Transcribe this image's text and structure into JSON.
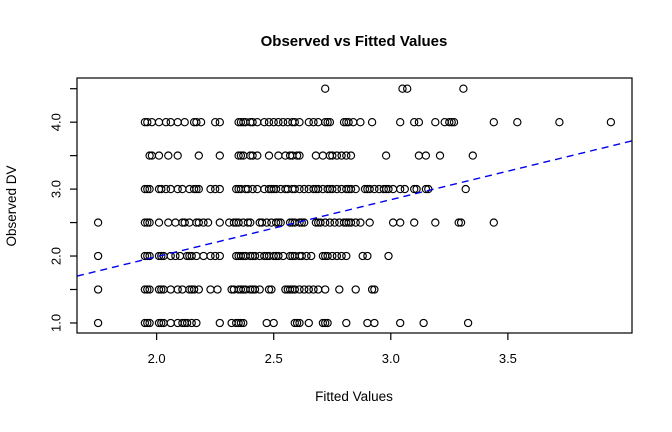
{
  "chart_data": {
    "type": "scatter",
    "title": "Observed vs Fitted Values",
    "xlabel": "Fitted Values",
    "ylabel": "Observed DV",
    "xlim": [
      1.66,
      4.03
    ],
    "ylim": [
      0.85,
      4.66
    ],
    "x_ticks": [
      2.0,
      2.5,
      3.0,
      3.5
    ],
    "x_tick_labels": [
      "2.0",
      "2.5",
      "3.0",
      "3.5"
    ],
    "y_ticks": [
      1.0,
      1.5,
      2.0,
      2.5,
      3.0,
      3.5,
      4.0,
      4.5
    ],
    "y_tick_labels": [
      "1.0",
      "",
      "2.0",
      "",
      "3.0",
      "",
      "4.0",
      ""
    ],
    "grid": false,
    "legend": "none",
    "point_style": {
      "shape": "open-circle",
      "color": "#000000"
    },
    "trend_line": {
      "style": "dashed",
      "color": "#0000EE",
      "x1": 1.66,
      "y1": 1.7,
      "x2": 4.03,
      "y2": 3.72,
      "equation_approx": "y = 0.27 + 0.86x"
    },
    "rows": [
      {
        "observed": 4.5,
        "fitted": [
          2.72,
          3.05,
          3.07,
          3.31
        ]
      },
      {
        "observed": 4.0,
        "fitted": [
          1.95,
          1.96,
          1.98,
          2.01,
          2.04,
          2.06,
          2.09,
          2.12,
          2.16,
          2.17,
          2.19,
          2.25,
          2.27,
          2.35,
          2.36,
          2.37,
          2.38,
          2.4,
          2.41,
          2.43,
          2.46,
          2.48,
          2.5,
          2.52,
          2.54,
          2.56,
          2.58,
          2.59,
          2.61,
          2.65,
          2.67,
          2.69,
          2.72,
          2.73,
          2.74,
          2.8,
          2.81,
          2.82,
          2.84,
          2.87,
          2.92,
          3.04,
          3.1,
          3.12,
          3.19,
          3.23,
          3.25,
          3.26,
          3.27,
          3.44,
          3.54,
          3.72,
          3.94
        ]
      },
      {
        "observed": 3.5,
        "fitted": [
          1.97,
          1.98,
          2.01,
          2.05,
          2.09,
          2.18,
          2.27,
          2.35,
          2.36,
          2.37,
          2.4,
          2.41,
          2.43,
          2.48,
          2.52,
          2.55,
          2.57,
          2.58,
          2.6,
          2.61,
          2.68,
          2.71,
          2.74,
          2.75,
          2.77,
          2.79,
          2.81,
          2.83,
          2.98,
          3.12,
          3.15,
          3.21,
          3.35
        ]
      },
      {
        "observed": 3.0,
        "fitted": [
          1.95,
          1.96,
          1.97,
          2.01,
          2.02,
          2.04,
          2.06,
          2.09,
          2.11,
          2.14,
          2.16,
          2.17,
          2.18,
          2.23,
          2.25,
          2.27,
          2.34,
          2.35,
          2.36,
          2.38,
          2.39,
          2.41,
          2.43,
          2.46,
          2.48,
          2.49,
          2.5,
          2.51,
          2.53,
          2.55,
          2.56,
          2.58,
          2.59,
          2.61,
          2.63,
          2.65,
          2.67,
          2.68,
          2.69,
          2.71,
          2.73,
          2.74,
          2.75,
          2.77,
          2.79,
          2.81,
          2.82,
          2.83,
          2.85,
          2.89,
          2.9,
          2.91,
          2.93,
          2.95,
          2.97,
          2.98,
          2.99,
          3.01,
          3.04,
          3.06,
          3.1,
          3.11,
          3.15,
          3.16,
          3.32
        ]
      },
      {
        "observed": 2.5,
        "fitted": [
          1.75,
          1.95,
          1.96,
          1.97,
          2.01,
          2.05,
          2.08,
          2.11,
          2.12,
          2.14,
          2.17,
          2.18,
          2.2,
          2.22,
          2.27,
          2.31,
          2.33,
          2.34,
          2.35,
          2.37,
          2.39,
          2.4,
          2.44,
          2.45,
          2.47,
          2.49,
          2.51,
          2.52,
          2.53,
          2.57,
          2.58,
          2.59,
          2.61,
          2.62,
          2.63,
          2.68,
          2.69,
          2.7,
          2.72,
          2.74,
          2.76,
          2.78,
          2.8,
          2.81,
          2.82,
          2.83,
          2.85,
          2.87,
          2.91,
          3.01,
          3.04,
          3.1,
          3.19,
          3.29,
          3.3,
          3.44
        ]
      },
      {
        "observed": 2.0,
        "fitted": [
          1.75,
          1.95,
          1.96,
          1.97,
          2.01,
          2.02,
          2.03,
          2.06,
          2.08,
          2.1,
          2.13,
          2.14,
          2.15,
          2.17,
          2.2,
          2.23,
          2.25,
          2.27,
          2.34,
          2.35,
          2.36,
          2.37,
          2.38,
          2.4,
          2.41,
          2.42,
          2.44,
          2.46,
          2.47,
          2.48,
          2.5,
          2.51,
          2.52,
          2.54,
          2.57,
          2.58,
          2.59,
          2.61,
          2.62,
          2.64,
          2.66,
          2.71,
          2.72,
          2.73,
          2.75,
          2.77,
          2.79,
          2.81,
          2.88,
          2.9,
          2.99
        ]
      },
      {
        "observed": 1.5,
        "fitted": [
          1.75,
          1.95,
          1.96,
          1.97,
          2.01,
          2.02,
          2.03,
          2.06,
          2.09,
          2.11,
          2.14,
          2.15,
          2.16,
          2.18,
          2.23,
          2.26,
          2.32,
          2.33,
          2.35,
          2.36,
          2.37,
          2.38,
          2.4,
          2.41,
          2.42,
          2.44,
          2.48,
          2.49,
          2.55,
          2.56,
          2.57,
          2.58,
          2.59,
          2.61,
          2.63,
          2.65,
          2.67,
          2.69,
          2.72,
          2.78,
          2.85,
          2.92,
          2.93
        ]
      },
      {
        "observed": 1.0,
        "fitted": [
          1.75,
          1.95,
          1.96,
          1.97,
          2.01,
          2.02,
          2.03,
          2.06,
          2.09,
          2.11,
          2.12,
          2.13,
          2.15,
          2.17,
          2.27,
          2.32,
          2.34,
          2.35,
          2.36,
          2.37,
          2.47,
          2.5,
          2.59,
          2.6,
          2.61,
          2.65,
          2.71,
          2.72,
          2.73,
          2.81,
          2.9,
          2.93,
          3.04,
          3.14,
          3.33
        ]
      }
    ]
  }
}
